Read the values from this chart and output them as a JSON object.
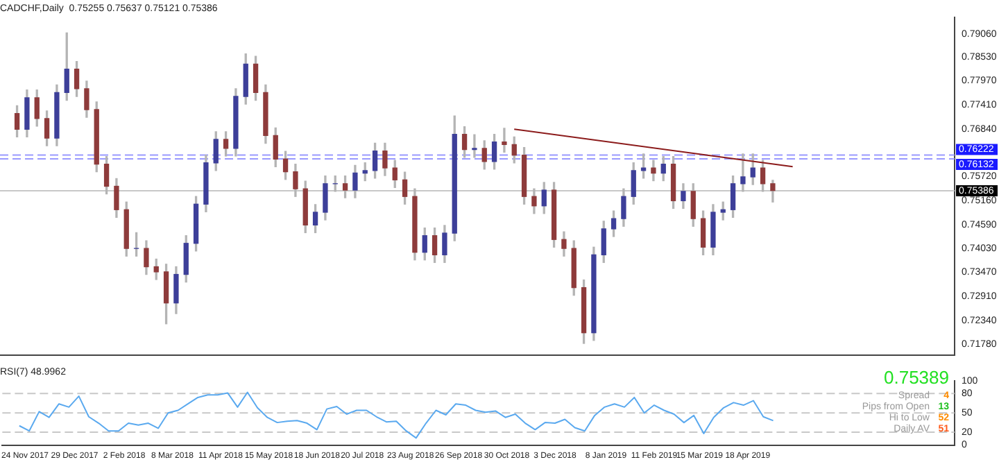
{
  "chart_data": [
    {
      "type": "candlestick",
      "title": "CADCHF,Daily  0.75255 0.75637 0.75121 0.75386",
      "x": [
        "2017-11-20",
        "2017-11-27",
        "2017-12-04",
        "2017-12-11",
        "2017-12-18",
        "2017-12-25",
        "2018-01-01",
        "2018-01-08",
        "2018-01-15",
        "2018-01-22",
        "2018-01-29",
        "2018-02-05",
        "2018-02-12",
        "2018-02-19",
        "2018-02-26",
        "2018-03-05",
        "2018-03-12",
        "2018-03-19",
        "2018-03-26",
        "2018-04-02",
        "2018-04-09",
        "2018-04-16",
        "2018-04-23",
        "2018-04-30",
        "2018-05-07",
        "2018-05-14",
        "2018-05-21",
        "2018-05-28",
        "2018-06-04",
        "2018-06-11",
        "2018-06-18",
        "2018-06-25",
        "2018-07-02",
        "2018-07-09",
        "2018-07-16",
        "2018-07-23",
        "2018-07-30",
        "2018-08-06",
        "2018-08-13",
        "2018-08-20",
        "2018-08-27",
        "2018-09-03",
        "2018-09-10",
        "2018-09-17",
        "2018-09-24",
        "2018-10-01",
        "2018-10-08",
        "2018-10-15",
        "2018-10-22",
        "2018-10-29",
        "2018-11-05",
        "2018-11-12",
        "2018-11-19",
        "2018-11-26",
        "2018-12-03",
        "2018-12-10",
        "2018-12-17",
        "2018-12-24",
        "2018-12-31",
        "2019-01-07",
        "2019-01-14",
        "2019-01-21",
        "2019-01-28",
        "2019-02-04",
        "2019-02-11",
        "2019-02-18",
        "2019-02-25",
        "2019-03-04",
        "2019-03-11",
        "2019-03-18",
        "2019-03-25",
        "2019-04-01",
        "2019-04-08",
        "2019-04-15",
        "2019-04-22",
        "2019-04-29",
        "2019-05-06"
      ],
      "ohlc": [
        [
          0.772,
          0.7738,
          0.7665,
          0.7683
        ],
        [
          0.7683,
          0.7775,
          0.7665,
          0.7757
        ],
        [
          0.7757,
          0.7775,
          0.769,
          0.7708
        ],
        [
          0.7708,
          0.7726,
          0.7644,
          0.7662
        ],
        [
          0.7662,
          0.7787,
          0.7644,
          0.7769
        ],
        [
          0.7769,
          0.7909,
          0.7751,
          0.7824
        ],
        [
          0.7824,
          0.7842,
          0.776,
          0.7778
        ],
        [
          0.7778,
          0.7796,
          0.7711,
          0.7729
        ],
        [
          0.7729,
          0.7747,
          0.7583,
          0.7601
        ],
        [
          0.7601,
          0.7619,
          0.7531,
          0.7549
        ],
        [
          0.7549,
          0.7567,
          0.7476,
          0.7494
        ],
        [
          0.7494,
          0.7512,
          0.7385,
          0.7403
        ],
        [
          0.7403,
          0.744,
          0.7385,
          0.7403
        ],
        [
          0.7403,
          0.7421,
          0.7342,
          0.736
        ],
        [
          0.736,
          0.7378,
          0.733,
          0.7348
        ],
        [
          0.7348,
          0.7366,
          0.7226,
          0.7275
        ],
        [
          0.7275,
          0.736,
          0.725,
          0.7342
        ],
        [
          0.7342,
          0.7433,
          0.7324,
          0.7415
        ],
        [
          0.7415,
          0.7525,
          0.7397,
          0.7507
        ],
        [
          0.7507,
          0.7622,
          0.7489,
          0.7604
        ],
        [
          0.7604,
          0.7677,
          0.7586,
          0.7659
        ],
        [
          0.7659,
          0.7677,
          0.762,
          0.7638
        ],
        [
          0.7638,
          0.7778,
          0.762,
          0.776
        ],
        [
          0.776,
          0.786,
          0.7742,
          0.7836
        ],
        [
          0.7836,
          0.7854,
          0.7751,
          0.7769
        ],
        [
          0.7769,
          0.7787,
          0.765,
          0.7668
        ],
        [
          0.7668,
          0.7686,
          0.7595,
          0.7613
        ],
        [
          0.7613,
          0.7631,
          0.7565,
          0.7583
        ],
        [
          0.7583,
          0.7601,
          0.7525,
          0.7543
        ],
        [
          0.7543,
          0.7561,
          0.744,
          0.7458
        ],
        [
          0.7458,
          0.7506,
          0.744,
          0.7488
        ],
        [
          0.7488,
          0.7573,
          0.747,
          0.7555
        ],
        [
          0.7555,
          0.7573,
          0.7537,
          0.7555
        ],
        [
          0.7555,
          0.7573,
          0.7522,
          0.754
        ],
        [
          0.754,
          0.7598,
          0.7522,
          0.758
        ],
        [
          0.758,
          0.7604,
          0.7562,
          0.7586
        ],
        [
          0.7586,
          0.765,
          0.7568,
          0.7632
        ],
        [
          0.7632,
          0.765,
          0.7574,
          0.7592
        ],
        [
          0.7592,
          0.761,
          0.7546,
          0.7564
        ],
        [
          0.7564,
          0.7582,
          0.7507,
          0.7525
        ],
        [
          0.7525,
          0.7543,
          0.7376,
          0.7394
        ],
        [
          0.7394,
          0.7451,
          0.7376,
          0.7433
        ],
        [
          0.7433,
          0.7451,
          0.737,
          0.7388
        ],
        [
          0.7388,
          0.7457,
          0.737,
          0.7439
        ],
        [
          0.7439,
          0.7714,
          0.7421,
          0.7671
        ],
        [
          0.7671,
          0.7689,
          0.7617,
          0.7635
        ],
        [
          0.7635,
          0.767,
          0.7617,
          0.7638
        ],
        [
          0.7638,
          0.7656,
          0.7589,
          0.7607
        ],
        [
          0.7607,
          0.7671,
          0.7589,
          0.7653
        ],
        [
          0.7653,
          0.7685,
          0.7629,
          0.7647
        ],
        [
          0.7647,
          0.7665,
          0.7604,
          0.7622
        ],
        [
          0.7622,
          0.764,
          0.7507,
          0.7525
        ],
        [
          0.7525,
          0.7543,
          0.7485,
          0.7503
        ],
        [
          0.7503,
          0.7558,
          0.7485,
          0.754
        ],
        [
          0.754,
          0.7558,
          0.7406,
          0.7424
        ],
        [
          0.7424,
          0.7442,
          0.7385,
          0.7403
        ],
        [
          0.7403,
          0.7421,
          0.7293,
          0.7311
        ],
        [
          0.7311,
          0.7329,
          0.718,
          0.7205
        ],
        [
          0.7205,
          0.7406,
          0.7187,
          0.7388
        ],
        [
          0.7388,
          0.7467,
          0.737,
          0.7449
        ],
        [
          0.7449,
          0.7491,
          0.7431,
          0.7473
        ],
        [
          0.7473,
          0.7543,
          0.7455,
          0.7525
        ],
        [
          0.7525,
          0.7604,
          0.7507,
          0.7586
        ],
        [
          0.7586,
          0.7625,
          0.7568,
          0.7592
        ],
        [
          0.7592,
          0.761,
          0.7562,
          0.758
        ],
        [
          0.758,
          0.7619,
          0.7562,
          0.7601
        ],
        [
          0.7601,
          0.7619,
          0.7497,
          0.7515
        ],
        [
          0.7515,
          0.7555,
          0.7497,
          0.7537
        ],
        [
          0.7537,
          0.7555,
          0.7455,
          0.7473
        ],
        [
          0.7473,
          0.7491,
          0.7388,
          0.7406
        ],
        [
          0.7406,
          0.7506,
          0.7388,
          0.7488
        ],
        [
          0.7488,
          0.7512,
          0.747,
          0.7494
        ],
        [
          0.7494,
          0.7573,
          0.7476,
          0.7555
        ],
        [
          0.7555,
          0.7625,
          0.7537,
          0.7571
        ],
        [
          0.7571,
          0.7625,
          0.7553,
          0.7592
        ],
        [
          0.7592,
          0.761,
          0.7537,
          0.7555
        ],
        [
          0.7555,
          0.7563,
          0.7512,
          0.7539
        ]
      ],
      "series": [
        {
          "type": "line",
          "x": [
            "2018-11-05",
            "2019-05-20"
          ],
          "values": [
            0.7683,
            0.7595
          ],
          "color": "#8b1a1a"
        }
      ],
      "xlim": [
        "2017-11-08",
        "2019-09-11"
      ],
      "ylim": [
        0.7153,
        0.7946
      ],
      "yticks": [
        {
          "value": 0.7906,
          "label": "0.79060"
        },
        {
          "value": 0.7853,
          "label": "0.78530"
        },
        {
          "value": 0.7797,
          "label": "0.77970"
        },
        {
          "value": 0.7741,
          "label": "0.77410"
        },
        {
          "value": 0.7684,
          "label": "0.76840"
        },
        {
          "value": 0.7572,
          "label": "0.75720"
        },
        {
          "value": 0.7516,
          "label": "0.75160"
        },
        {
          "value": 0.7459,
          "label": "0.74590"
        },
        {
          "value": 0.7403,
          "label": "0.74030"
        },
        {
          "value": 0.7347,
          "label": "0.73470"
        },
        {
          "value": 0.7291,
          "label": "0.72910"
        },
        {
          "value": 0.7234,
          "label": "0.72340"
        },
        {
          "value": 0.7178,
          "label": "0.71780"
        }
      ],
      "tick_labels": "y",
      "ref_lines": [
        {
          "axis": "y",
          "value": 0.76222,
          "label": "0.76222",
          "color": "#9999ff",
          "line_style": "dashed"
        },
        {
          "axis": "y",
          "value": 0.76132,
          "label": "0.76132",
          "color": "#9999ff",
          "line_style": "dashed"
        },
        {
          "axis": "y",
          "value": 0.75386,
          "label": "0.75386",
          "color": "#c8c8c8",
          "line_style": "solid"
        }
      ]
    },
    {
      "type": "line",
      "title": "RSI(7) 48.9962",
      "x": [
        "2017-11-20",
        "2017-11-27",
        "2017-12-04",
        "2017-12-11",
        "2017-12-18",
        "2017-12-25",
        "2018-01-01",
        "2018-01-08",
        "2018-01-15",
        "2018-01-22",
        "2018-01-29",
        "2018-02-05",
        "2018-02-12",
        "2018-02-19",
        "2018-02-26",
        "2018-03-05",
        "2018-03-12",
        "2018-03-19",
        "2018-03-26",
        "2018-04-02",
        "2018-04-09",
        "2018-04-16",
        "2018-04-23",
        "2018-04-30",
        "2018-05-07",
        "2018-05-14",
        "2018-05-21",
        "2018-05-28",
        "2018-06-04",
        "2018-06-11",
        "2018-06-18",
        "2018-06-25",
        "2018-07-02",
        "2018-07-09",
        "2018-07-16",
        "2018-07-23",
        "2018-07-30",
        "2018-08-06",
        "2018-08-13",
        "2018-08-20",
        "2018-08-27",
        "2018-09-03",
        "2018-09-10",
        "2018-09-17",
        "2018-09-24",
        "2018-10-01",
        "2018-10-08",
        "2018-10-15",
        "2018-10-22",
        "2018-10-29",
        "2018-11-05",
        "2018-11-12",
        "2018-11-19",
        "2018-11-26",
        "2018-12-03",
        "2018-12-10",
        "2018-12-17",
        "2018-12-24",
        "2018-12-31",
        "2019-01-07",
        "2019-01-14",
        "2019-01-21",
        "2019-01-28",
        "2019-02-04",
        "2019-02-11",
        "2019-02-18",
        "2019-02-25",
        "2019-03-04",
        "2019-03-11",
        "2019-03-18",
        "2019-03-25",
        "2019-04-01",
        "2019-04-08",
        "2019-04-15",
        "2019-04-22",
        "2019-04-29",
        "2019-05-06"
      ],
      "series": [
        {
          "color": "#5aa9ef",
          "values": [
            30,
            22,
            52,
            43,
            64,
            59,
            76,
            44,
            34,
            22,
            22,
            34,
            31,
            34,
            26,
            50,
            54,
            64,
            74,
            78,
            78,
            81,
            59,
            82,
            58,
            43,
            35,
            37,
            38,
            34,
            24,
            56,
            60,
            48,
            54,
            54,
            44,
            36,
            37,
            22,
            11,
            34,
            54,
            47,
            64,
            62,
            54,
            51,
            53,
            43,
            48,
            34,
            24,
            35,
            34,
            40,
            27,
            22,
            46,
            59,
            64,
            59,
            74,
            50,
            62,
            54,
            48,
            35,
            46,
            18,
            43,
            58,
            66,
            62,
            69,
            44,
            38
          ]
        }
      ],
      "xlim": [
        "2017-11-08",
        "2019-09-11"
      ],
      "xticks": [
        {
          "value": "2017-11-24",
          "label": "24 Nov 2017"
        },
        {
          "value": "2017-12-29",
          "label": "29 Dec 2017"
        },
        {
          "value": "2018-02-02",
          "label": "2 Feb 2018"
        },
        {
          "value": "2018-03-08",
          "label": "8 Mar 2018"
        },
        {
          "value": "2018-04-11",
          "label": "11 Apr 2018"
        },
        {
          "value": "2018-05-15",
          "label": "15 May 2018"
        },
        {
          "value": "2018-06-18",
          "label": "18 Jun 2018"
        },
        {
          "value": "2018-07-20",
          "label": "20 Jul 2018"
        },
        {
          "value": "2018-08-23",
          "label": "23 Aug 2018"
        },
        {
          "value": "2018-09-26",
          "label": "26 Sep 2018"
        },
        {
          "value": "2018-10-30",
          "label": "30 Oct 2018"
        },
        {
          "value": "2018-12-03",
          "label": "3 Dec 2018"
        },
        {
          "value": "2019-01-08",
          "label": "8 Jan 2019"
        },
        {
          "value": "2019-02-11",
          "label": "11 Feb 2019"
        },
        {
          "value": "2019-03-15",
          "label": "15 Mar 2019"
        },
        {
          "value": "2019-04-18",
          "label": "18 Apr 2019"
        }
      ],
      "ylim": [
        0,
        100
      ],
      "yticks": [
        0,
        20,
        50,
        80,
        100
      ],
      "ref_lines": [
        {
          "axis": "y",
          "value": 20,
          "color": "#c8c8c8",
          "line_style": "dashed"
        },
        {
          "axis": "y",
          "value": 50,
          "color": "#c8c8c8",
          "line_style": "dashed"
        },
        {
          "axis": "y",
          "value": 80,
          "color": "#c8c8c8",
          "line_style": "dashed"
        }
      ],
      "annotations": [
        "0.75389",
        "Spread",
        "4",
        "Pips from Open",
        "13",
        "Hi to Low",
        "52",
        "Daily AV",
        "51"
      ]
    }
  ]
}
